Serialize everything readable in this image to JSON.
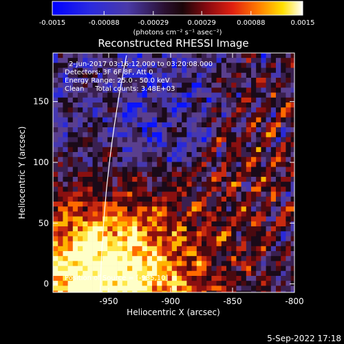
{
  "colorbar": {
    "tick_labels": [
      "-0.0015",
      "-0.00088",
      "-0.00029",
      "0.00029",
      "0.00088",
      "0.0015"
    ],
    "tick_values": [
      -0.0015,
      -0.00088,
      -0.00029,
      0.00029,
      0.00088,
      0.0015
    ],
    "range": [
      -0.0015,
      0.0015
    ],
    "unit_label": "(photons cm⁻² s⁻¹ asec⁻²)",
    "colors": [
      "#0000ff",
      "#3a39b8",
      "#5a3f8e",
      "#1a0a1a",
      "#5a0a10",
      "#c01010",
      "#ff6a00",
      "#ffd000",
      "#ffffff"
    ]
  },
  "plot": {
    "title": "Reconstructed RHESSI Image",
    "xlabel": "Heliocentric X (arcsec)",
    "ylabel": "Heliocentric Y (arcsec)",
    "x_ticks": [
      "-950",
      "-900",
      "-850",
      "-800"
    ],
    "x_tick_values": [
      -950,
      -900,
      -850,
      -800
    ],
    "y_ticks": [
      "0",
      "50",
      "100",
      "150"
    ],
    "y_tick_values": [
      0,
      50,
      100,
      150
    ],
    "xlim": [
      -995,
      -800
    ],
    "ylim": [
      -7,
      190
    ],
    "annotations": [
      "2-Jun-2017 03:16:12.000 to 03:20:08.000",
      "Detectors: 3F 6F 8F, Att 0",
      "Energy Range: 25.0 - 50.0 keV",
      "Clean     Total counts: 3.48E+03"
    ],
    "position_label": "Position of Source = [-935,10]",
    "limb_color": "#ffffff"
  },
  "footer": {
    "timestamp": "5-Sep-2022 17:18"
  }
}
